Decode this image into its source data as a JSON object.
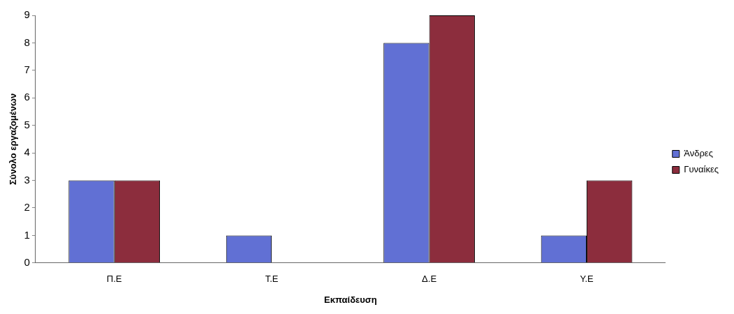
{
  "chart_data": {
    "type": "bar",
    "xlabel": "Εκπαίδευση",
    "ylabel": "Σύνολο εργαζομένων",
    "categories": [
      "Π.Ε",
      "Τ.Ε",
      "Δ.Ε",
      "Υ.Ε"
    ],
    "series": [
      {
        "name": "Άνδρες",
        "color": "#6170d4",
        "values": [
          3,
          1,
          8,
          1
        ]
      },
      {
        "name": "Γυναίκες",
        "color": "#8c2d3d",
        "values": [
          3,
          0,
          9,
          3
        ]
      }
    ],
    "ylim": [
      0,
      9
    ],
    "yticks": [
      0,
      1,
      2,
      3,
      4,
      5,
      6,
      7,
      8,
      9
    ],
    "grid": false,
    "legend": "right"
  }
}
